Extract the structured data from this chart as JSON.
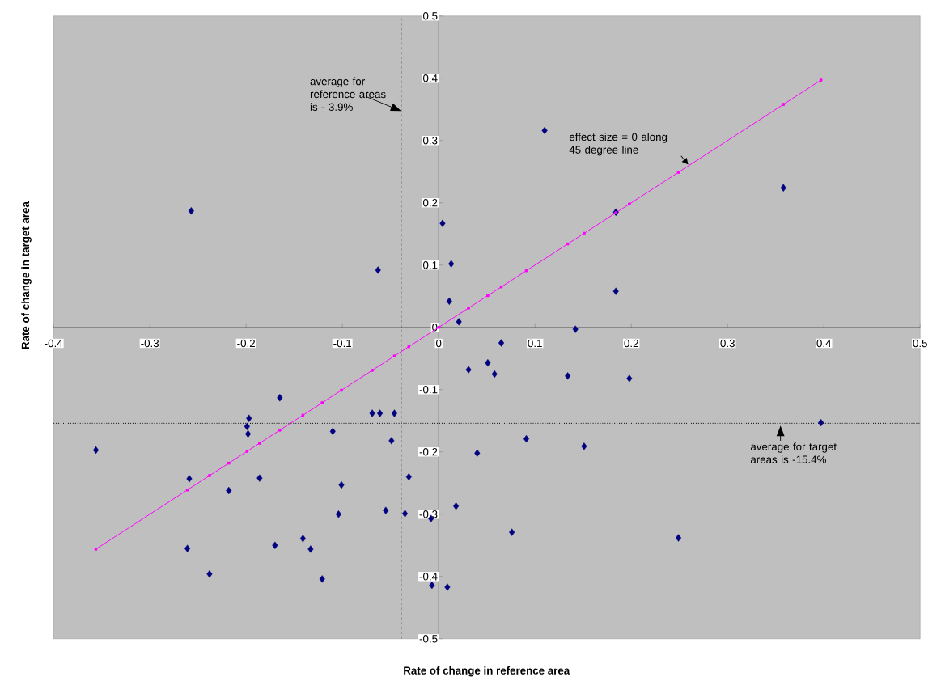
{
  "chart_data": {
    "type": "scatter",
    "xlabel": "Rate of change in reference area",
    "ylabel": "Rate of change in target area",
    "xlim": [
      -0.4,
      0.5
    ],
    "ylim": [
      -0.5,
      0.5
    ],
    "xticks": [
      -0.4,
      -0.3,
      -0.2,
      -0.1,
      0,
      0.1,
      0.2,
      0.3,
      0.4,
      0.5
    ],
    "yticks": [
      -0.5,
      -0.4,
      -0.3,
      -0.2,
      -0.1,
      0,
      0.1,
      0.2,
      0.3,
      0.4,
      0.5
    ],
    "series": [
      {
        "marker": "diamond",
        "color": "#000080",
        "x": [
          -0.356,
          -0.259,
          -0.261,
          -0.238,
          -0.218,
          -0.197,
          -0.199,
          -0.198,
          -0.186,
          -0.165,
          -0.17,
          -0.141,
          -0.133,
          -0.121,
          -0.11,
          -0.101,
          -0.104,
          -0.069,
          -0.061,
          -0.046,
          -0.049,
          -0.055,
          -0.031,
          -0.035,
          -0.008,
          -0.007,
          0.009,
          0.018,
          0.031,
          0.051,
          0.058,
          0.065,
          0.04,
          0.091,
          0.076,
          0.021,
          0.142,
          0.134,
          0.198,
          0.151,
          0.249,
          0.397,
          -0.257,
          -0.063,
          0.004,
          0.013,
          0.11,
          0.184,
          0.358,
          0.011,
          0.184
        ],
        "values": [
          -0.197,
          -0.243,
          -0.355,
          -0.396,
          -0.262,
          -0.146,
          -0.159,
          -0.171,
          -0.242,
          -0.113,
          -0.35,
          -0.339,
          -0.356,
          -0.404,
          -0.167,
          -0.253,
          -0.3,
          -0.138,
          -0.138,
          -0.138,
          -0.182,
          -0.294,
          -0.24,
          -0.299,
          -0.307,
          -0.414,
          -0.417,
          -0.287,
          -0.068,
          -0.057,
          -0.075,
          -0.025,
          -0.202,
          -0.179,
          -0.329,
          0.009,
          -0.003,
          -0.078,
          -0.082,
          -0.191,
          -0.338,
          -0.153,
          0.187,
          0.092,
          0.167,
          0.102,
          0.316,
          0.185,
          0.224,
          0.042,
          0.058
        ]
      },
      {
        "type": "line",
        "marker": "square",
        "color": "#ff00ff",
        "x": [
          -0.356,
          -0.261,
          -0.238,
          -0.218,
          -0.199,
          -0.186,
          -0.165,
          -0.141,
          -0.121,
          -0.101,
          -0.069,
          -0.046,
          -0.031,
          0,
          0.031,
          0.051,
          0.065,
          0.091,
          0.134,
          0.151,
          0.184,
          0.198,
          0.249,
          0.358,
          0.397
        ],
        "values": [
          -0.356,
          -0.261,
          -0.238,
          -0.218,
          -0.199,
          -0.186,
          -0.165,
          -0.141,
          -0.121,
          -0.101,
          -0.069,
          -0.046,
          -0.031,
          0,
          0.031,
          0.051,
          0.065,
          0.091,
          0.134,
          0.151,
          0.184,
          0.198,
          0.249,
          0.358,
          0.397
        ]
      }
    ],
    "ref_lines": [
      {
        "axis": "x",
        "value": -0.039,
        "label": "average for reference areas is - 3.9%",
        "line_style": "dashed",
        "color": "#000000"
      },
      {
        "axis": "y",
        "value": -0.154,
        "label": "average for target areas is -15.4%",
        "line_style": "dotted",
        "color": "#000000"
      }
    ],
    "annotations": [
      {
        "text": "effect size = 0 along 45 degree line",
        "x": 0.26,
        "y": 0.26
      }
    ]
  }
}
